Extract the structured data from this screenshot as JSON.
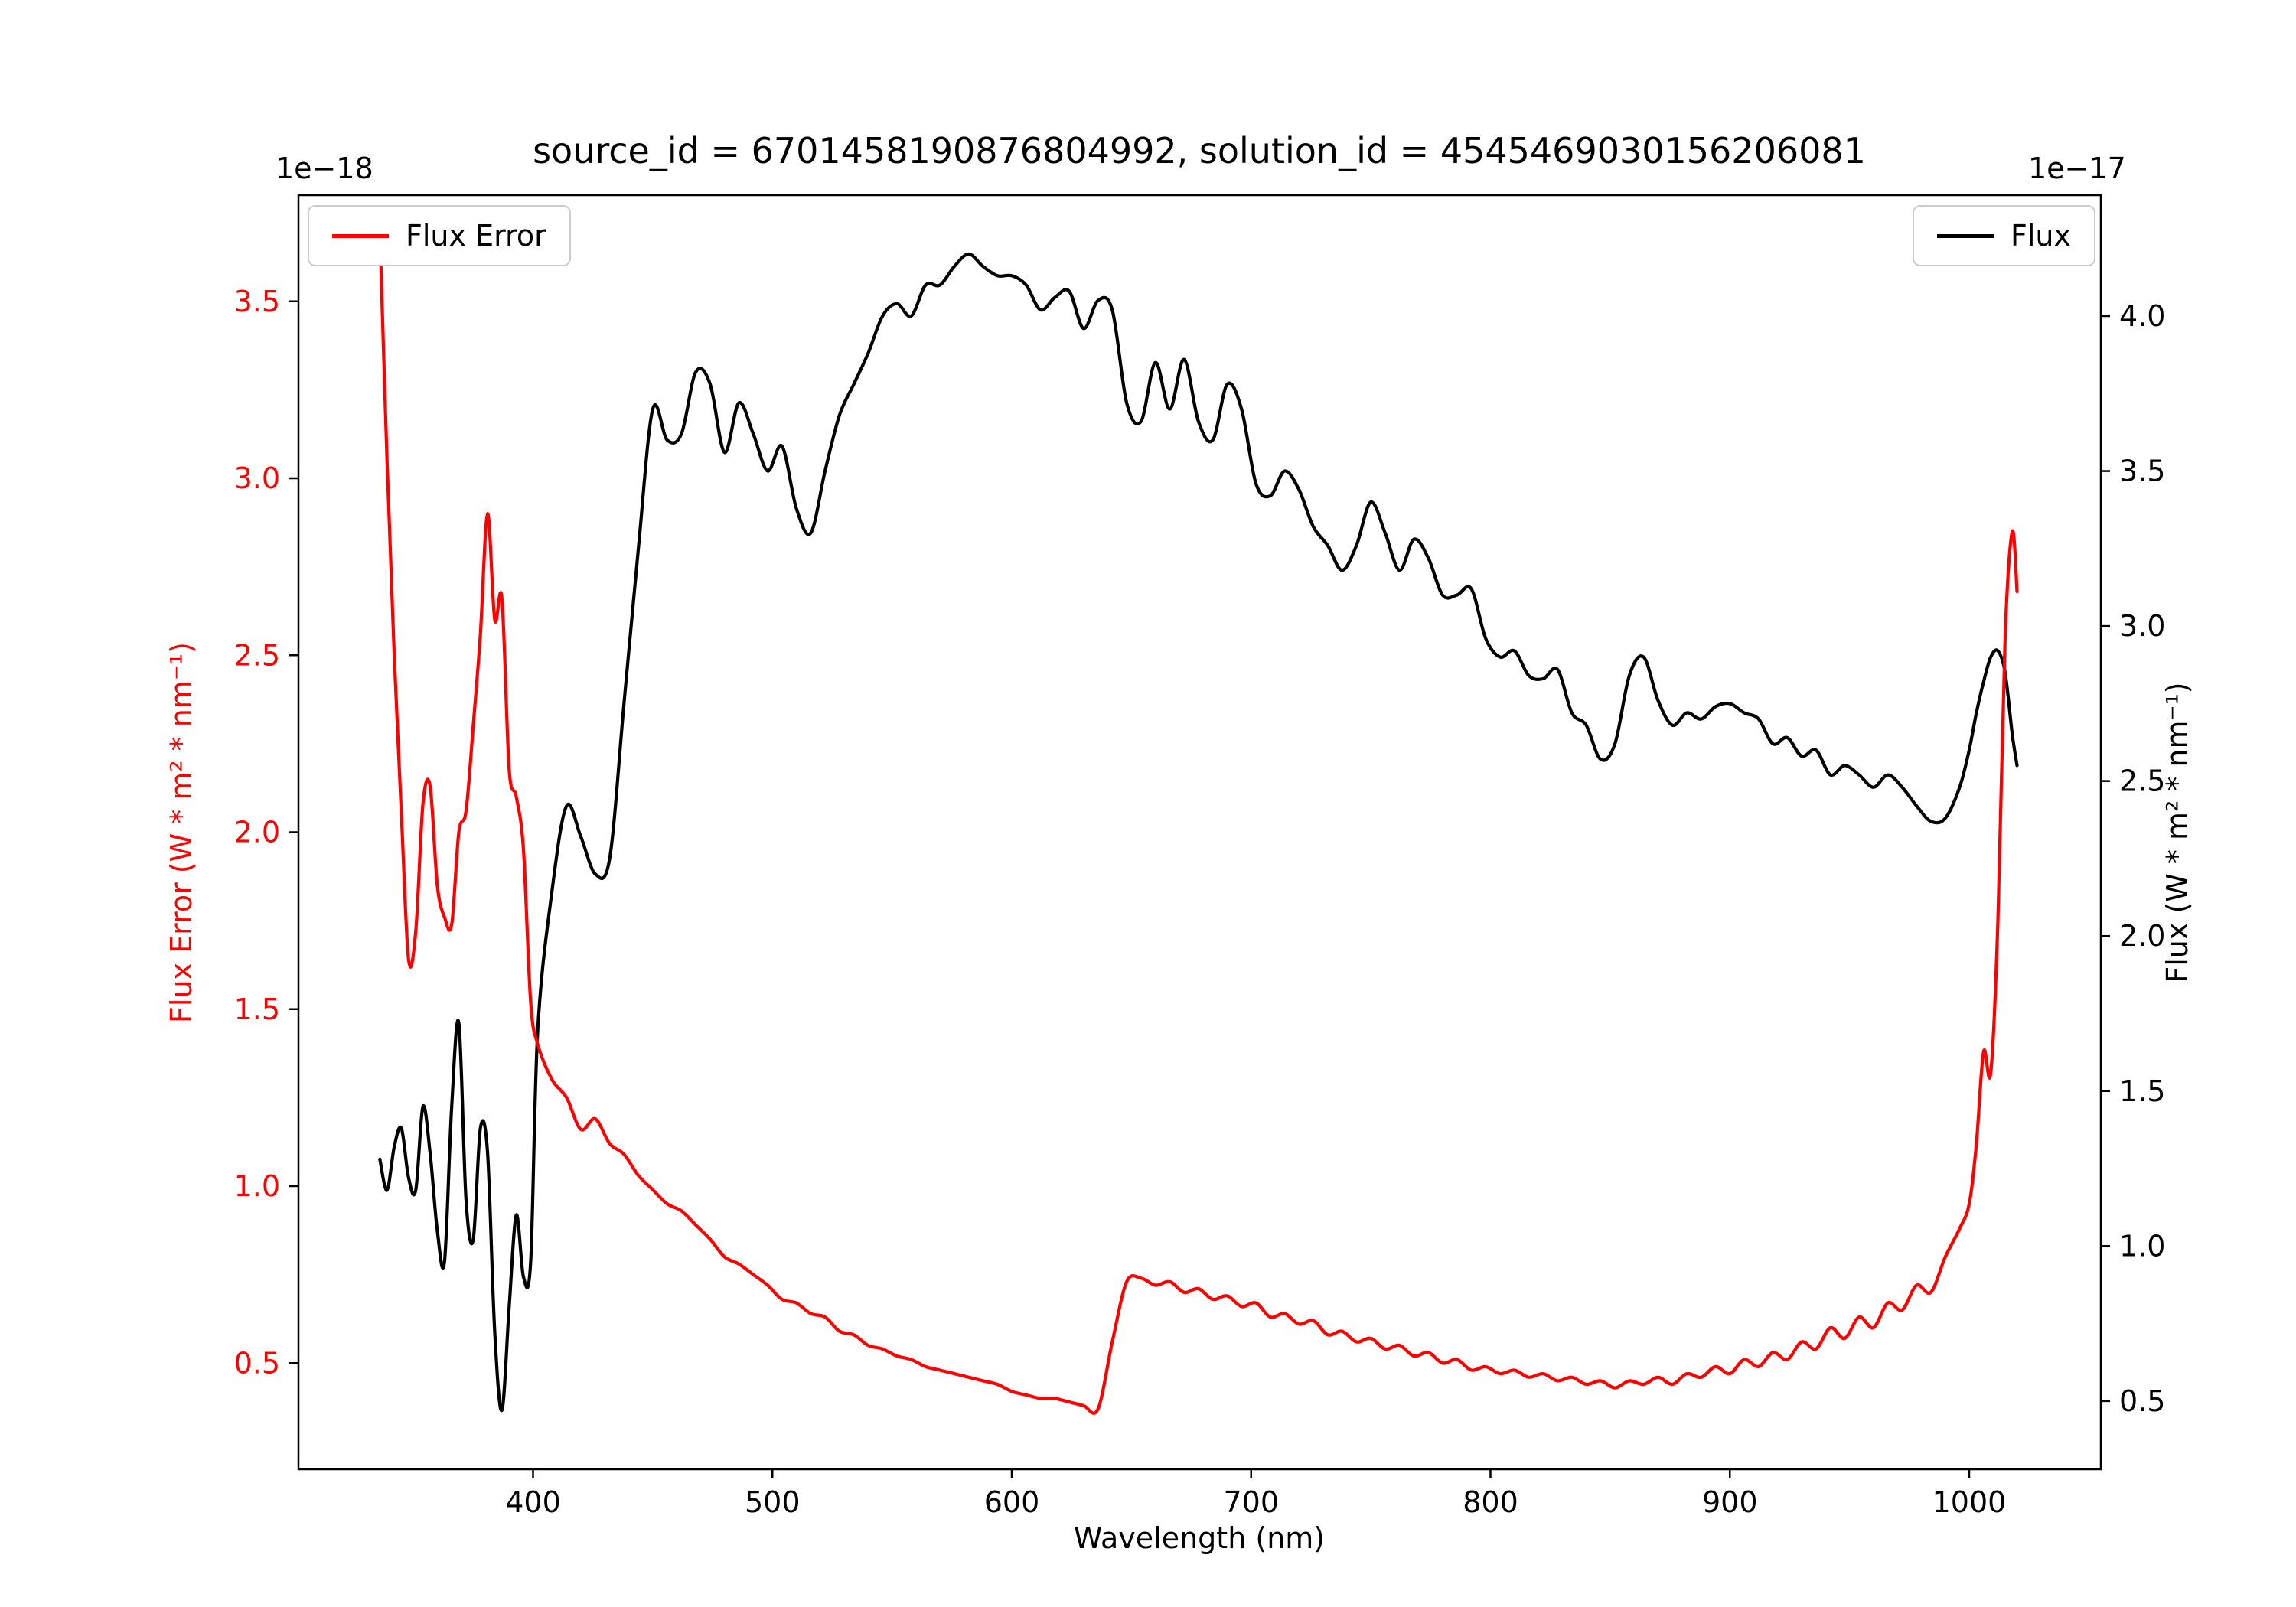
{
  "chart_data": {
    "type": "line",
    "title": "source_id = 6701458190876804992, solution_id = 4545469030156206081",
    "xlabel": "Wavelength (nm)",
    "grid": false,
    "xlim": [
      302,
      1055
    ],
    "x_ticks": [
      400,
      500,
      600,
      700,
      800,
      900,
      1000
    ],
    "left_axis": {
      "label": "Flux Error (W * m² * nm⁻¹)",
      "offset": "1e−18",
      "color": "#ff0000",
      "lim": [
        0.2,
        3.8
      ],
      "ticks": [
        0.5,
        1.0,
        1.5,
        2.0,
        2.5,
        3.0,
        3.5
      ]
    },
    "right_axis": {
      "label": "Flux (W * m² * nm⁻¹)",
      "offset": "1e−17",
      "color": "#000000",
      "lim": [
        0.28,
        4.39
      ],
      "ticks": [
        0.5,
        1.0,
        1.5,
        2.0,
        2.5,
        3.0,
        3.5,
        4.0
      ]
    },
    "x": [
      336,
      339,
      342,
      345,
      348,
      351,
      354,
      357,
      360,
      363,
      366,
      369,
      372,
      375,
      378,
      381,
      384,
      387,
      390,
      393,
      396,
      399,
      402,
      408,
      414,
      420,
      426,
      432,
      438,
      444,
      450,
      456,
      462,
      468,
      474,
      480,
      486,
      492,
      498,
      504,
      510,
      516,
      522,
      528,
      534,
      540,
      546,
      552,
      558,
      564,
      570,
      576,
      582,
      588,
      594,
      600,
      606,
      612,
      618,
      624,
      630,
      636,
      642,
      648,
      654,
      660,
      666,
      672,
      678,
      684,
      690,
      696,
      702,
      708,
      714,
      720,
      726,
      732,
      738,
      744,
      750,
      756,
      762,
      768,
      774,
      780,
      786,
      792,
      798,
      804,
      810,
      816,
      822,
      828,
      834,
      840,
      846,
      852,
      858,
      864,
      870,
      876,
      882,
      888,
      894,
      900,
      906,
      912,
      918,
      924,
      930,
      936,
      942,
      948,
      954,
      960,
      966,
      972,
      978,
      984,
      990,
      996,
      1000,
      1003,
      1006,
      1009,
      1012,
      1015,
      1018,
      1020
    ],
    "series": [
      {
        "name": "Flux",
        "color": "#000000",
        "axis": "right",
        "units_scale": "1e-17",
        "values": [
          1.28,
          1.18,
          1.32,
          1.38,
          1.22,
          1.18,
          1.45,
          1.3,
          1.05,
          0.95,
          1.45,
          1.72,
          1.15,
          1.02,
          1.38,
          1.3,
          0.72,
          0.47,
          0.8,
          1.1,
          0.9,
          0.95,
          1.7,
          2.15,
          2.42,
          2.32,
          2.2,
          2.25,
          2.75,
          3.25,
          3.7,
          3.6,
          3.62,
          3.82,
          3.78,
          3.56,
          3.72,
          3.62,
          3.5,
          3.58,
          3.38,
          3.3,
          3.5,
          3.68,
          3.78,
          3.88,
          4.0,
          4.04,
          4.0,
          4.1,
          4.1,
          4.16,
          4.2,
          4.16,
          4.13,
          4.13,
          4.1,
          4.02,
          4.06,
          4.08,
          3.96,
          4.05,
          4.02,
          3.72,
          3.66,
          3.85,
          3.7,
          3.86,
          3.66,
          3.6,
          3.78,
          3.7,
          3.46,
          3.42,
          3.5,
          3.44,
          3.32,
          3.26,
          3.18,
          3.26,
          3.4,
          3.3,
          3.18,
          3.28,
          3.22,
          3.1,
          3.1,
          3.12,
          2.96,
          2.9,
          2.92,
          2.84,
          2.83,
          2.86,
          2.72,
          2.68,
          2.57,
          2.62,
          2.84,
          2.9,
          2.76,
          2.68,
          2.72,
          2.7,
          2.74,
          2.75,
          2.72,
          2.7,
          2.62,
          2.64,
          2.58,
          2.6,
          2.52,
          2.55,
          2.52,
          2.48,
          2.52,
          2.48,
          2.42,
          2.37,
          2.38,
          2.48,
          2.6,
          2.72,
          2.82,
          2.9,
          2.92,
          2.85,
          2.65,
          2.55
        ]
      },
      {
        "name": "Flux Error",
        "color": "#ff0000",
        "axis": "left",
        "units_scale": "1e-18",
        "values": [
          3.7,
          3.05,
          2.5,
          2.05,
          1.64,
          1.72,
          2.08,
          2.13,
          1.85,
          1.76,
          1.74,
          2.0,
          2.06,
          2.3,
          2.56,
          2.9,
          2.6,
          2.66,
          2.18,
          2.1,
          1.95,
          1.52,
          1.4,
          1.3,
          1.25,
          1.16,
          1.19,
          1.12,
          1.09,
          1.03,
          0.99,
          0.95,
          0.93,
          0.89,
          0.85,
          0.8,
          0.78,
          0.75,
          0.72,
          0.68,
          0.67,
          0.64,
          0.63,
          0.59,
          0.58,
          0.55,
          0.54,
          0.52,
          0.51,
          0.49,
          0.48,
          0.47,
          0.46,
          0.45,
          0.44,
          0.42,
          0.41,
          0.4,
          0.4,
          0.39,
          0.38,
          0.37,
          0.56,
          0.73,
          0.74,
          0.72,
          0.73,
          0.7,
          0.71,
          0.68,
          0.69,
          0.66,
          0.67,
          0.63,
          0.64,
          0.61,
          0.62,
          0.58,
          0.59,
          0.56,
          0.57,
          0.54,
          0.55,
          0.52,
          0.53,
          0.5,
          0.51,
          0.48,
          0.49,
          0.47,
          0.48,
          0.46,
          0.47,
          0.45,
          0.46,
          0.44,
          0.45,
          0.43,
          0.45,
          0.44,
          0.46,
          0.44,
          0.47,
          0.46,
          0.49,
          0.47,
          0.51,
          0.49,
          0.53,
          0.51,
          0.56,
          0.54,
          0.6,
          0.57,
          0.63,
          0.6,
          0.67,
          0.65,
          0.72,
          0.7,
          0.8,
          0.88,
          0.95,
          1.12,
          1.38,
          1.32,
          1.75,
          2.55,
          2.85,
          2.68
        ]
      }
    ],
    "legend": [
      {
        "label": "Flux Error",
        "color": "#ff0000",
        "position": "upper left"
      },
      {
        "label": "Flux",
        "color": "#000000",
        "position": "upper right"
      }
    ]
  }
}
